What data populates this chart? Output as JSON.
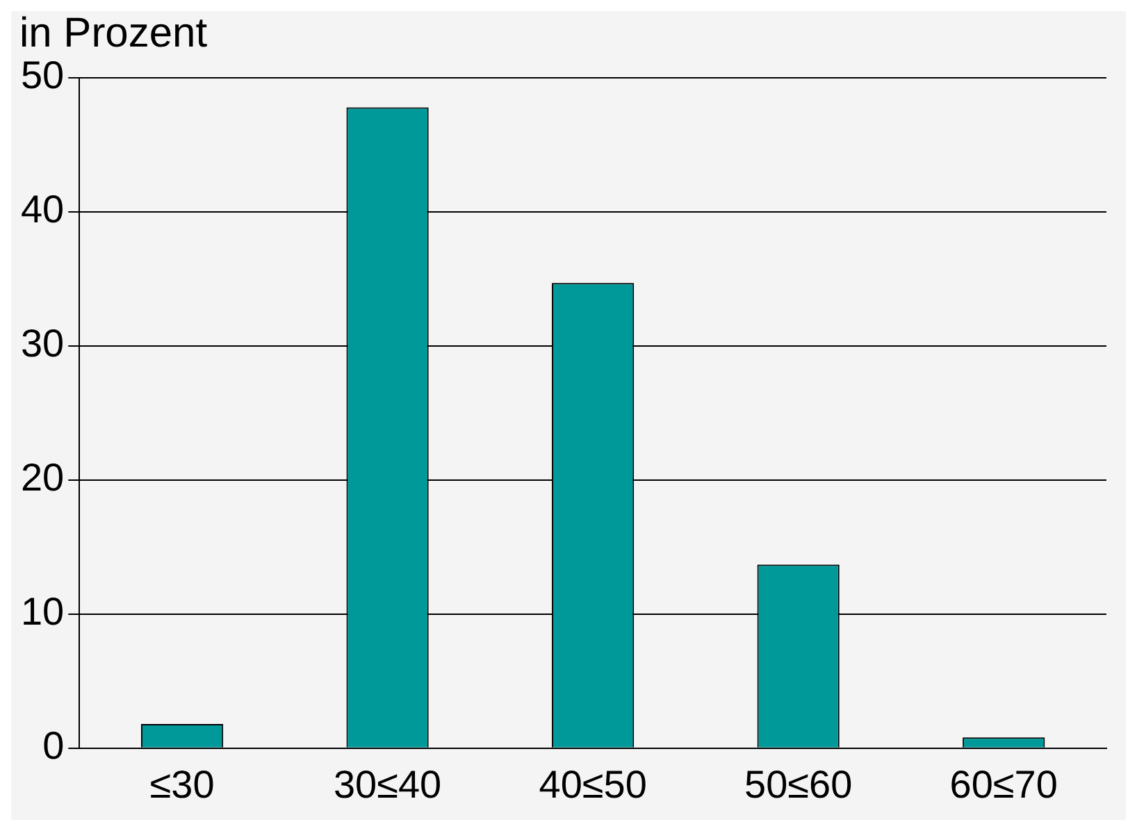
{
  "chart_data": {
    "type": "bar",
    "ylabel": "in Prozent",
    "categories": [
      "≤30",
      "30≤40",
      "40≤50",
      "50≤60",
      "60≤70"
    ],
    "values": [
      1.8,
      47.8,
      34.7,
      13.7,
      0.8
    ],
    "color": "#009999",
    "ylim": [
      0,
      50
    ],
    "yticks": [
      0,
      10,
      20,
      30,
      40,
      50
    ],
    "grid": "y",
    "legend": false
  }
}
